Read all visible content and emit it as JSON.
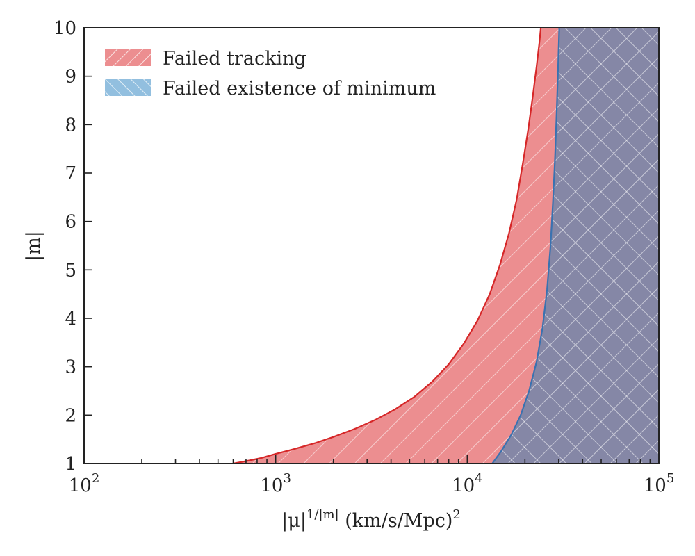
{
  "chart_data": {
    "type": "area",
    "xscale": "log",
    "xlim": [
      100,
      100000
    ],
    "ylim": [
      1,
      10
    ],
    "xlabel": {
      "base": "|μ|",
      "exponent": "1/|m|",
      "units": " (km/s/Mpc)",
      "units_exponent": "2"
    },
    "ylabel": "|m|",
    "x_ticks": [
      {
        "base": "10",
        "exp": "2",
        "value": 100
      },
      {
        "base": "10",
        "exp": "3",
        "value": 1000
      },
      {
        "base": "10",
        "exp": "4",
        "value": 10000
      },
      {
        "base": "10",
        "exp": "5",
        "value": 100000
      }
    ],
    "y_ticks": [
      "1",
      "2",
      "3",
      "4",
      "5",
      "6",
      "7",
      "8",
      "9",
      "10"
    ],
    "grid": false,
    "legend_position": "top-left",
    "series": [
      {
        "name": "Failed tracking",
        "color": "#d62728",
        "fill": "#ec8e90",
        "hatch": "/",
        "boundary": {
          "x": [
            600,
            700,
            850,
            1000,
            1250,
            1600,
            2000,
            2600,
            3300,
            4200,
            5300,
            6600,
            8000,
            9600,
            11300,
            13100,
            14800,
            16500,
            18100,
            19500,
            20800,
            22000,
            23000,
            23800,
            24200
          ],
          "y": [
            1.0,
            1.05,
            1.12,
            1.2,
            1.3,
            1.42,
            1.55,
            1.72,
            1.9,
            2.12,
            2.38,
            2.7,
            3.05,
            3.48,
            3.95,
            4.5,
            5.1,
            5.75,
            6.45,
            7.2,
            7.9,
            8.6,
            9.2,
            9.7,
            10.0
          ]
        },
        "fill_to": "right"
      },
      {
        "name": "Failed existence of minimum",
        "color": "#3a72b0",
        "fill": "#92bfdf",
        "hatch": "\\",
        "boundary": {
          "x": [
            13500,
            15000,
            17000,
            19000,
            21000,
            23000,
            24700,
            26100,
            27200,
            28000,
            28700,
            29300,
            29800,
            30200
          ],
          "y": [
            1.0,
            1.25,
            1.6,
            2.0,
            2.5,
            3.1,
            3.8,
            4.6,
            5.5,
            6.4,
            7.3,
            8.3,
            9.2,
            10.0
          ]
        },
        "fill_to": "right"
      }
    ],
    "overlap_color": "#8587a6"
  }
}
